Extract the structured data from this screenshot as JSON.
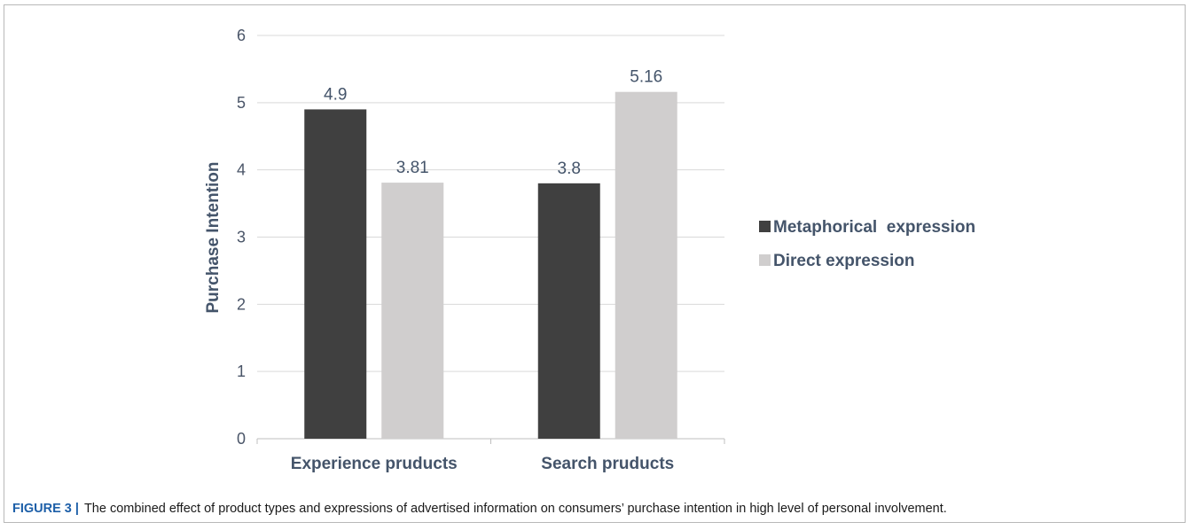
{
  "chart_data": {
    "type": "bar",
    "categories": [
      "Experience pruducts",
      "Search pruducts"
    ],
    "series": [
      {
        "name": "Metaphorical  expression",
        "values": [
          4.9,
          3.8
        ],
        "value_labels": [
          "4.9",
          "3.8"
        ],
        "color": "#404040"
      },
      {
        "name": "Direct expression",
        "values": [
          3.81,
          5.16
        ],
        "value_labels": [
          "3.81",
          "5.16"
        ],
        "color": "#d0cece"
      }
    ],
    "ylabel": "Purchase Intention",
    "xlabel": "",
    "ylim": [
      0,
      6
    ],
    "yticks": [
      0,
      1,
      2,
      3,
      4,
      5,
      6
    ],
    "grid": true,
    "legend_position": "right"
  },
  "caption": {
    "figure_id": "FIGURE 3",
    "separator": "|",
    "text": "The combined effect of product types and expressions of advertised information on consumers’ purchase intention in high level of personal involvement."
  },
  "colors": {
    "gridline": "#d9d9d9",
    "axis": "#bfbfbf",
    "text": "#44546a",
    "caption_accent": "#1d5fa8"
  }
}
